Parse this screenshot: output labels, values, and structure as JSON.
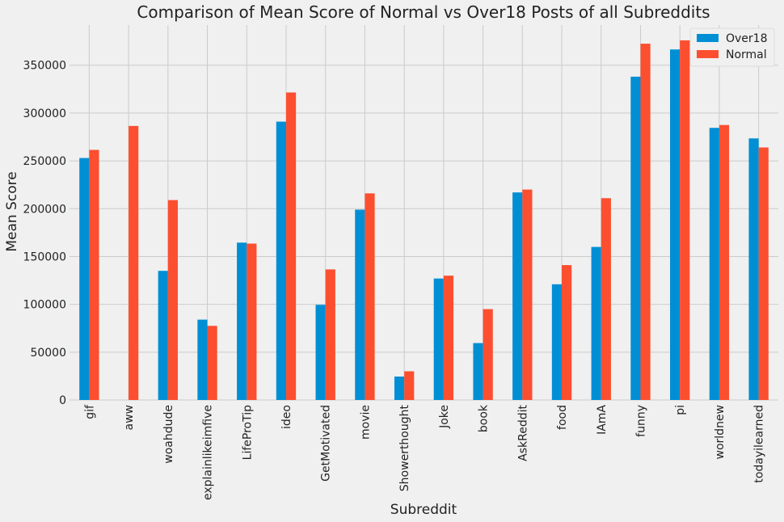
{
  "chart_data": {
    "type": "bar",
    "title": "Comparison of Mean Score of Normal vs Over18 Posts of all Subreddits",
    "xlabel": "Subreddit",
    "ylabel": "Mean Score",
    "ylim": [
      0,
      392000
    ],
    "yticks": [
      0,
      50000,
      100000,
      150000,
      200000,
      250000,
      300000,
      350000
    ],
    "grid": true,
    "legend_position": "top-right",
    "categories": [
      "gif",
      "aww",
      "woahdude",
      "explainlikeimfive",
      "LifeProTip",
      "ideo",
      "GetMotivated",
      "movie",
      "Showerthought",
      "Joke",
      "book",
      "AskReddit",
      "food",
      "IAmA",
      "funny",
      "pi",
      "worldnew",
      "todayilearned"
    ],
    "series": [
      {
        "name": "Over18",
        "color": "#008fd5",
        "values": [
          253000,
          0,
          135000,
          84000,
          164500,
          291000,
          99500,
          199000,
          24500,
          127000,
          59500,
          217000,
          121000,
          160000,
          338000,
          366500,
          284500,
          273500
        ]
      },
      {
        "name": "Normal",
        "color": "#fc4f30",
        "values": [
          261500,
          286500,
          209000,
          77500,
          163500,
          321500,
          136500,
          216000,
          30000,
          130000,
          95000,
          220000,
          141000,
          211000,
          372500,
          376000,
          287500,
          264000
        ]
      }
    ]
  }
}
